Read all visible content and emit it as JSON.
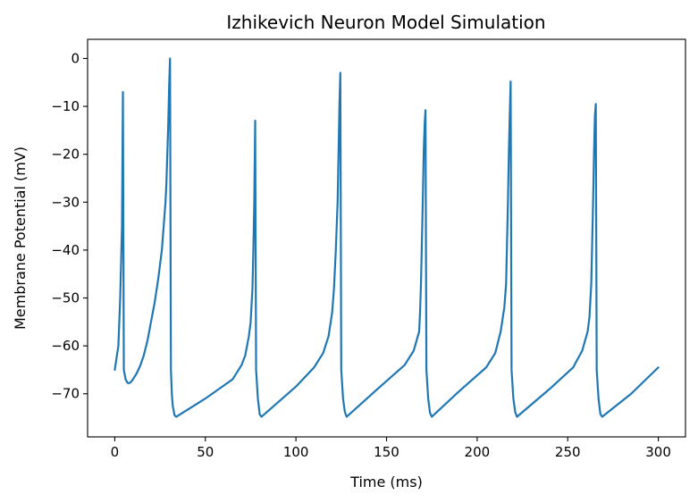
{
  "chart_data": {
    "type": "line",
    "title": "Izhikevich Neuron Model Simulation",
    "xlabel": "Time (ms)",
    "ylabel": "Membrane Potential (mV)",
    "xlim": [
      -15,
      315
    ],
    "ylim": [
      -79,
      4
    ],
    "xticks": [
      0,
      50,
      100,
      150,
      200,
      250,
      300
    ],
    "xtick_labels": [
      "0",
      "50",
      "100",
      "150",
      "200",
      "250",
      "300"
    ],
    "yticks": [
      0,
      -10,
      -20,
      -30,
      -40,
      -50,
      -60,
      -70
    ],
    "ytick_labels": [
      "0",
      "−10",
      "−20",
      "−30",
      "−40",
      "−50",
      "−60",
      "−70"
    ],
    "grid": false,
    "series": [
      {
        "color": "#1f77b4",
        "x": [
          0,
          2,
          3,
          4,
          4.5,
          5,
          6,
          7,
          8,
          9,
          10,
          12,
          14,
          16,
          18,
          20,
          22,
          24,
          26,
          27,
          28,
          28.5,
          29,
          29.5,
          30,
          30.5,
          31,
          31.5,
          32,
          33,
          34,
          50,
          65,
          70,
          72,
          74,
          75,
          76,
          76.5,
          77,
          77.5,
          78,
          79,
          80,
          81,
          100,
          110,
          115,
          118,
          120,
          121,
          122,
          123,
          123.5,
          124,
          124.5,
          125,
          126,
          127,
          128,
          145,
          160,
          165,
          168,
          168.5,
          169,
          170,
          170.5,
          171,
          171.5,
          172,
          173,
          174,
          175,
          190,
          205,
          210,
          213,
          215,
          216,
          217,
          217.5,
          218,
          218.5,
          219,
          220,
          221,
          222,
          240,
          253,
          258,
          261,
          262,
          263,
          264,
          264.5,
          265,
          265.5,
          266,
          267,
          268,
          269,
          285,
          300
        ],
        "y": [
          -65,
          -60,
          -50,
          -35,
          -7,
          -65,
          -67,
          -67.7,
          -67.8,
          -67.5,
          -67,
          -65.8,
          -64.2,
          -62,
          -59,
          -55,
          -51,
          -46,
          -40,
          -35,
          -30,
          -26,
          -20,
          -14,
          -6,
          0,
          -65,
          -70,
          -72.5,
          -74.5,
          -74.8,
          -71,
          -67,
          -64,
          -62,
          -58,
          -55,
          -48,
          -40,
          -30,
          -13,
          -65,
          -71,
          -74.3,
          -74.8,
          -68.5,
          -64.5,
          -61.5,
          -58,
          -53,
          -48,
          -40,
          -30,
          -20,
          -10,
          -3,
          -65,
          -71,
          -73.8,
          -74.8,
          -69,
          -64,
          -61,
          -57,
          -53,
          -47,
          -30,
          -20,
          -14,
          -10.8,
          -65,
          -71,
          -74,
          -74.8,
          -69.5,
          -64.5,
          -61.5,
          -57,
          -52,
          -47,
          -30,
          -20,
          -12,
          -4.8,
          -65,
          -71,
          -73.8,
          -74.8,
          -69,
          -64.5,
          -61,
          -57,
          -54,
          -47,
          -30,
          -20,
          -12,
          -9.5,
          -65,
          -71,
          -74.2,
          -74.8,
          -70,
          -64.5
        ]
      }
    ]
  }
}
